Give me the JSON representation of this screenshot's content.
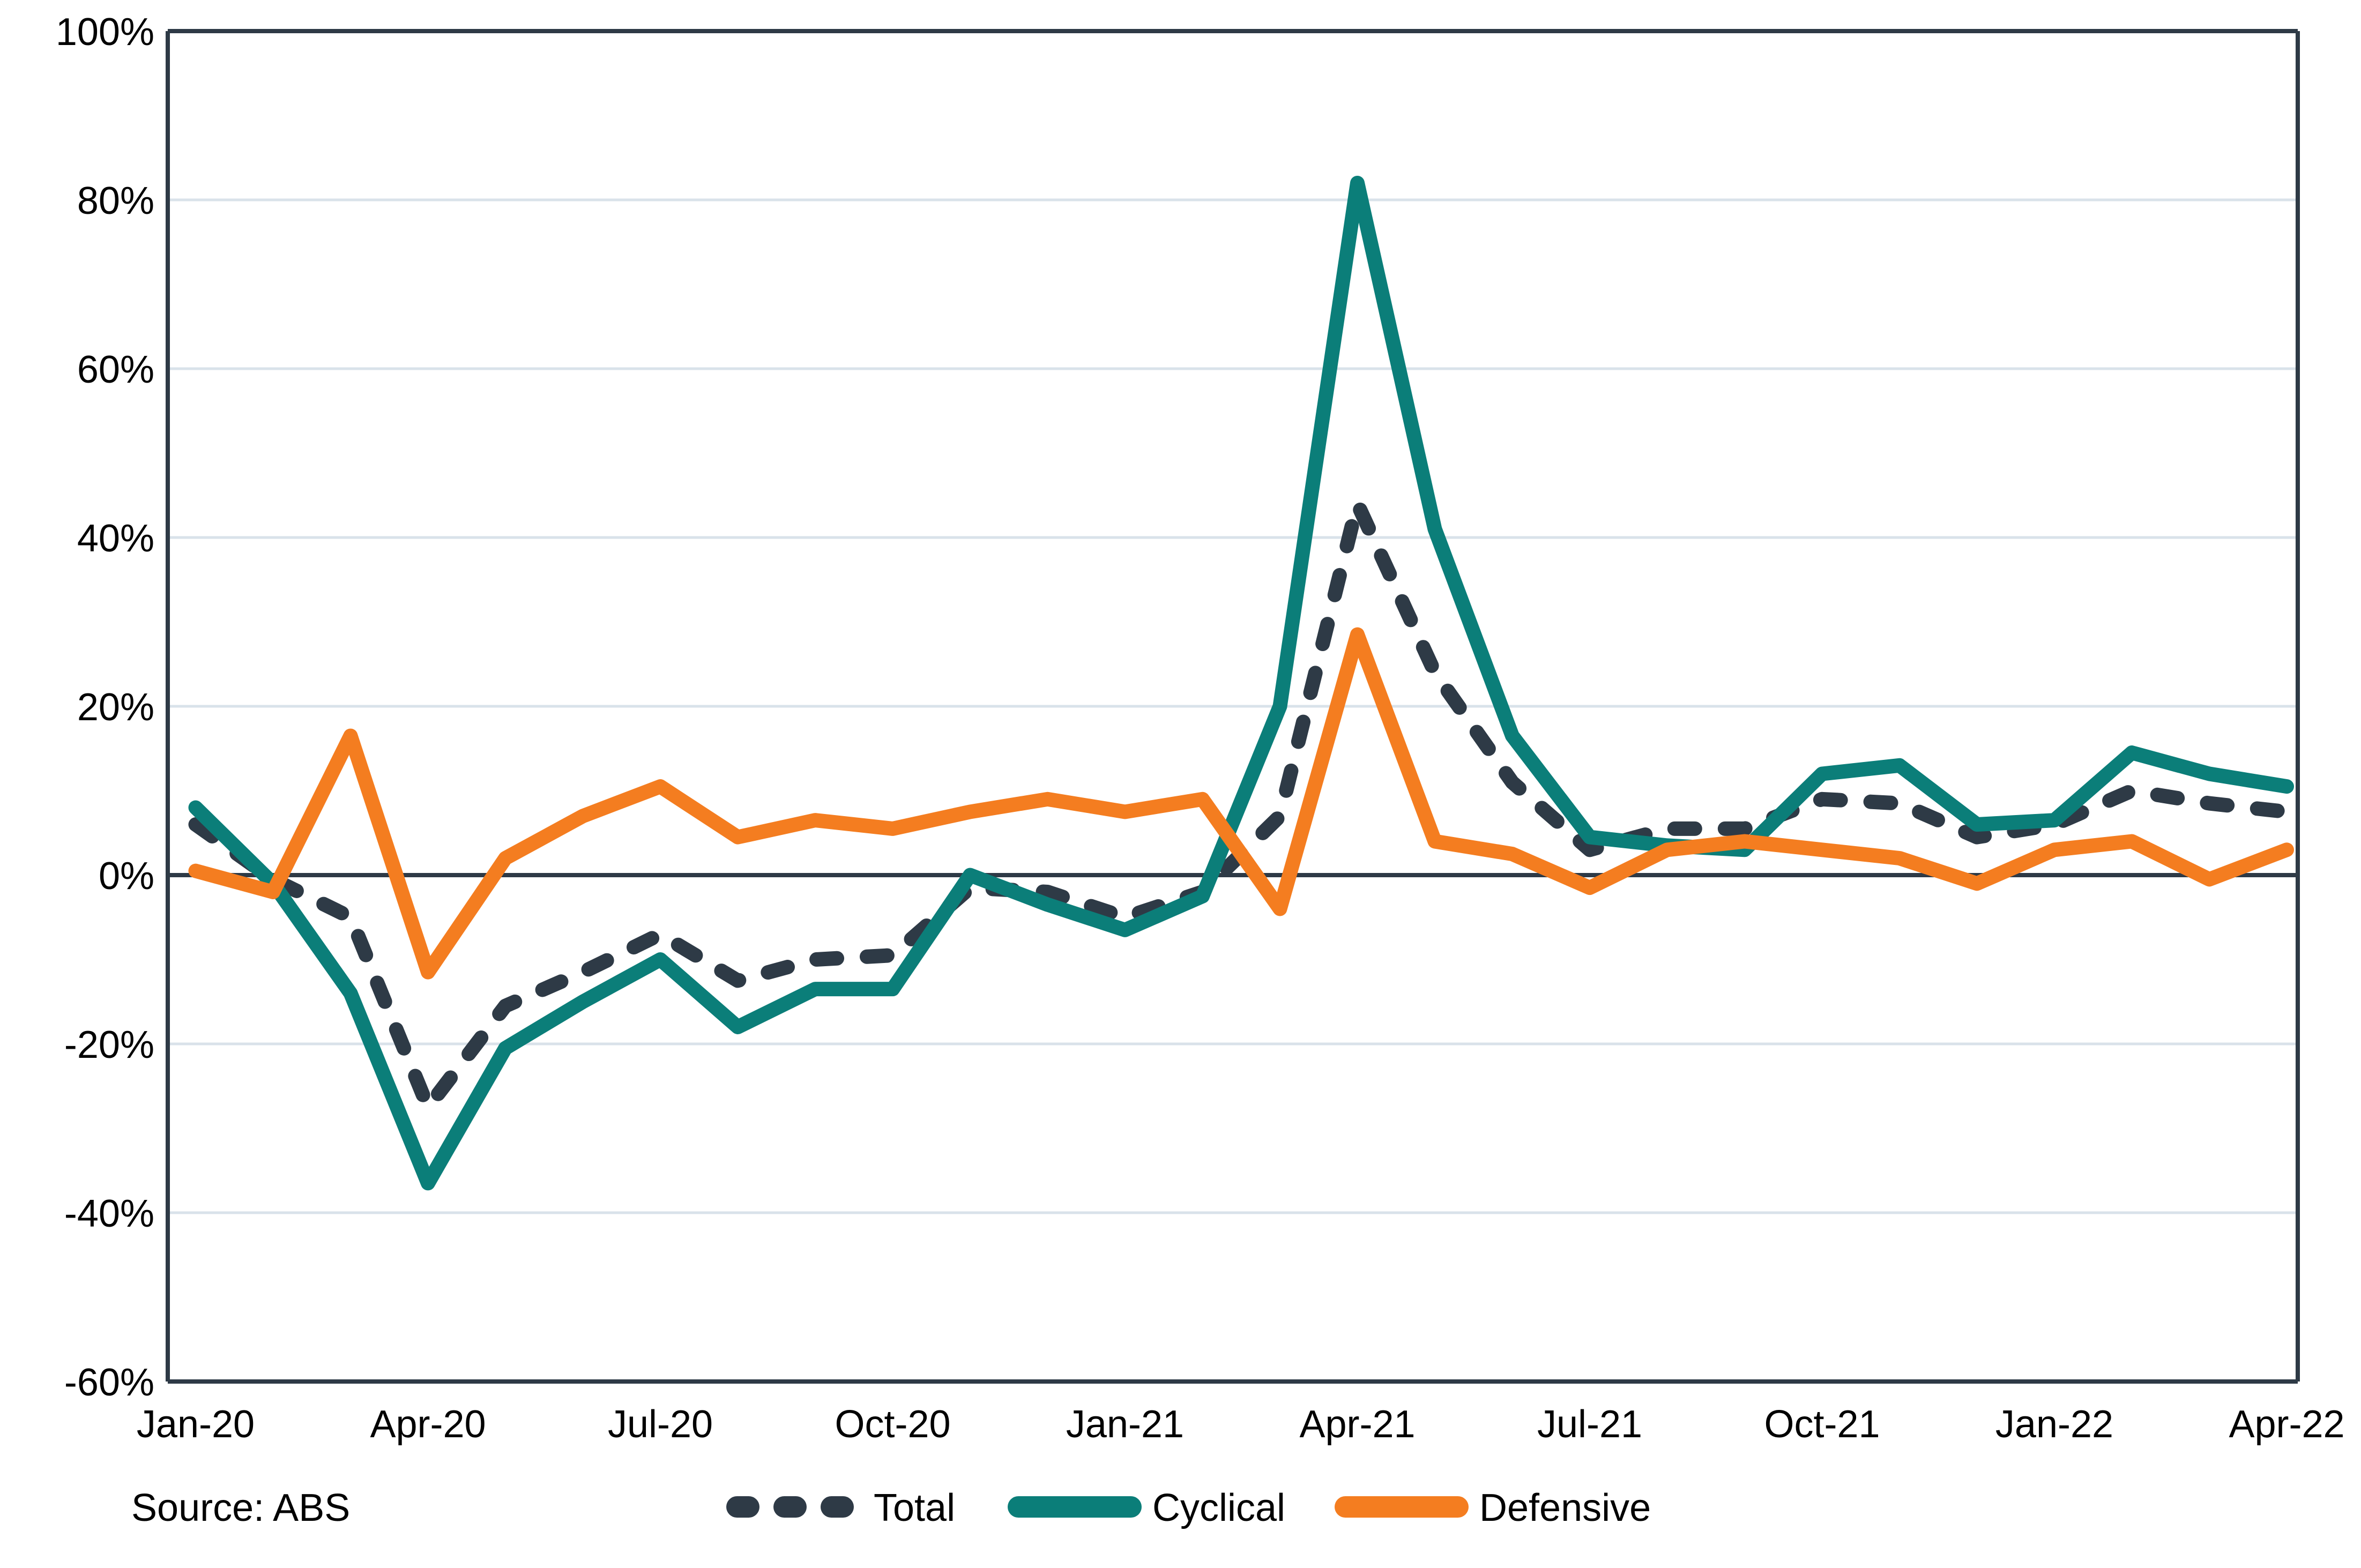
{
  "chart_data": {
    "type": "line",
    "title": "",
    "xlabel": "",
    "ylabel": "",
    "source": "Source: ABS",
    "ylim": [
      -60,
      100
    ],
    "y_tick_step": 20,
    "y_tick_labels": [
      "100%",
      "80%",
      "60%",
      "40%",
      "20%",
      "0%",
      "-20%",
      "-40%",
      "-60%"
    ],
    "x_tick_labels": [
      "Jan-20",
      "Apr-20",
      "Jul-20",
      "Oct-20",
      "Jan-21",
      "Apr-21",
      "Jul-21",
      "Oct-21",
      "Jan-22",
      "Apr-22"
    ],
    "x_tick_every": 3,
    "grid": "horizontal",
    "legend_position": "bottom",
    "categories": [
      "Jan-20",
      "Feb-20",
      "Mar-20",
      "Apr-20",
      "May-20",
      "Jun-20",
      "Jul-20",
      "Aug-20",
      "Sep-20",
      "Oct-20",
      "Nov-20",
      "Dec-20",
      "Jan-21",
      "Feb-21",
      "Mar-21",
      "Apr-21",
      "May-21",
      "Jun-21",
      "Jul-21",
      "Aug-21",
      "Sep-21",
      "Oct-21",
      "Nov-21",
      "Dec-21",
      "Jan-22",
      "Feb-22",
      "Mar-22",
      "Apr-22"
    ],
    "series": [
      {
        "name": "Total",
        "style": "dashed",
        "color": "#2E3A46",
        "values": [
          6,
          -0.5,
          -5,
          -27.5,
          -15.5,
          -11.5,
          -7,
          -12.5,
          -10,
          -9.5,
          -1.5,
          -2,
          -5,
          -2,
          7,
          44,
          24,
          11,
          3,
          5.5,
          5.5,
          9,
          8.5,
          4.5,
          6,
          10,
          8.5,
          7.5
        ]
      },
      {
        "name": "Cyclical",
        "style": "solid",
        "color": "#0B7E79",
        "values": [
          8,
          -1,
          -14,
          -36.5,
          -20.5,
          -15,
          -10,
          -18,
          -13.5,
          -13.5,
          0,
          -3.5,
          -6.5,
          -2.5,
          20,
          82,
          41,
          16.5,
          4.5,
          3.5,
          3,
          12,
          13,
          6,
          6.5,
          14.5,
          12,
          10.5
        ]
      },
      {
        "name": "Defensive",
        "style": "solid",
        "color": "#F47D20",
        "values": [
          0.5,
          -2,
          16.5,
          -11.5,
          2,
          7,
          10.5,
          4.5,
          6.5,
          5.5,
          7.5,
          9,
          7.5,
          9,
          -4,
          28.5,
          4,
          2.5,
          -1.5,
          3,
          4,
          3,
          2,
          -1,
          3,
          4,
          -0.5,
          3
        ]
      }
    ],
    "colors": {
      "axis_and_frame": "#2E3A46",
      "gridline": "#D9E2EA",
      "background": "#FFFFFF",
      "text": "#000000"
    }
  }
}
